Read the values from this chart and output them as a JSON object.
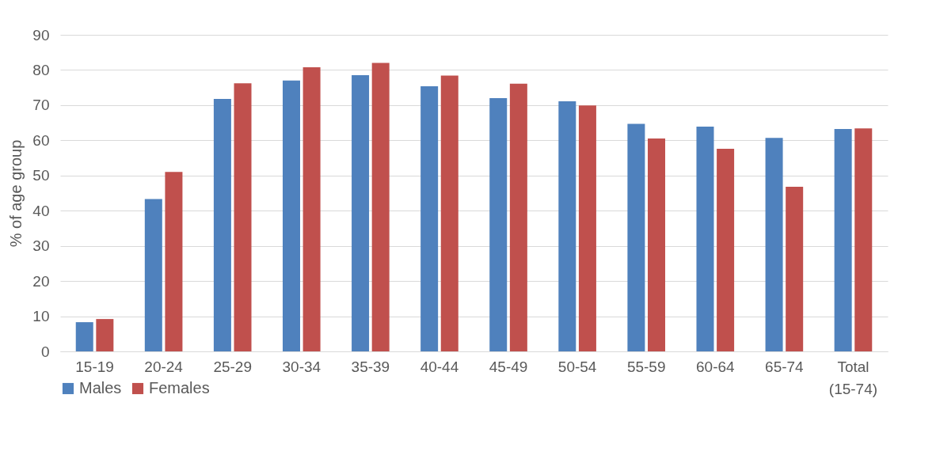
{
  "chart_data": {
    "type": "bar",
    "ylabel": "% of age group",
    "categories": [
      "15-19",
      "20-24",
      "25-29",
      "30-34",
      "35-39",
      "40-44",
      "45-49",
      "50-54",
      "55-59",
      "60-64",
      "65-74",
      "Total (15-74)"
    ],
    "series": [
      {
        "name": "Males",
        "color": "#4f81bd",
        "values": [
          8.3,
          43.3,
          71.8,
          77,
          78.5,
          75.4,
          72,
          71.1,
          64.7,
          63.9,
          60.7,
          63.2
        ]
      },
      {
        "name": "Females",
        "color": "#c0504d",
        "values": [
          9.2,
          51,
          76.2,
          80.8,
          82,
          78.4,
          76.1,
          69.9,
          60.5,
          57.6,
          46.8,
          63.4
        ]
      }
    ],
    "ylim": [
      0,
      90
    ],
    "yticks": [
      0,
      10,
      20,
      30,
      40,
      50,
      60,
      70,
      80,
      90
    ],
    "grid": "y",
    "legend": "bottom"
  }
}
